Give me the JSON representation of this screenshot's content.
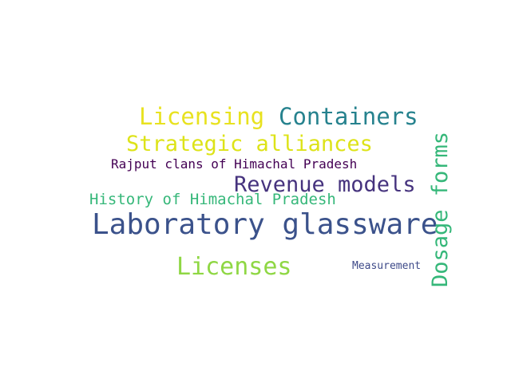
{
  "word_cloud": {
    "words": {
      "laboratory_glassware": "Laboratory glassware",
      "licensing": "Licensing",
      "containers": "Containers",
      "strategic_alliances": "Strategic alliances",
      "rajput_clans": "Rajput clans of Himachal Pradesh",
      "revenue_models": "Revenue models",
      "history_himachal": "History of Himachal Pradesh",
      "licenses": "Licenses",
      "measurement": "Measurement",
      "dosage_forms": "Dosage forms"
    },
    "colors": {
      "laboratory_glassware": "#3b528b",
      "licensing": "#e8e21f",
      "containers": "#26828e",
      "strategic_alliances": "#dde318",
      "rajput_clans": "#440154",
      "revenue_models": "#46337e",
      "history_himachal": "#35b779",
      "licenses": "#8fd744",
      "measurement": "#3e4a89",
      "dosage_forms": "#35b779"
    },
    "background": "#ffffff"
  }
}
